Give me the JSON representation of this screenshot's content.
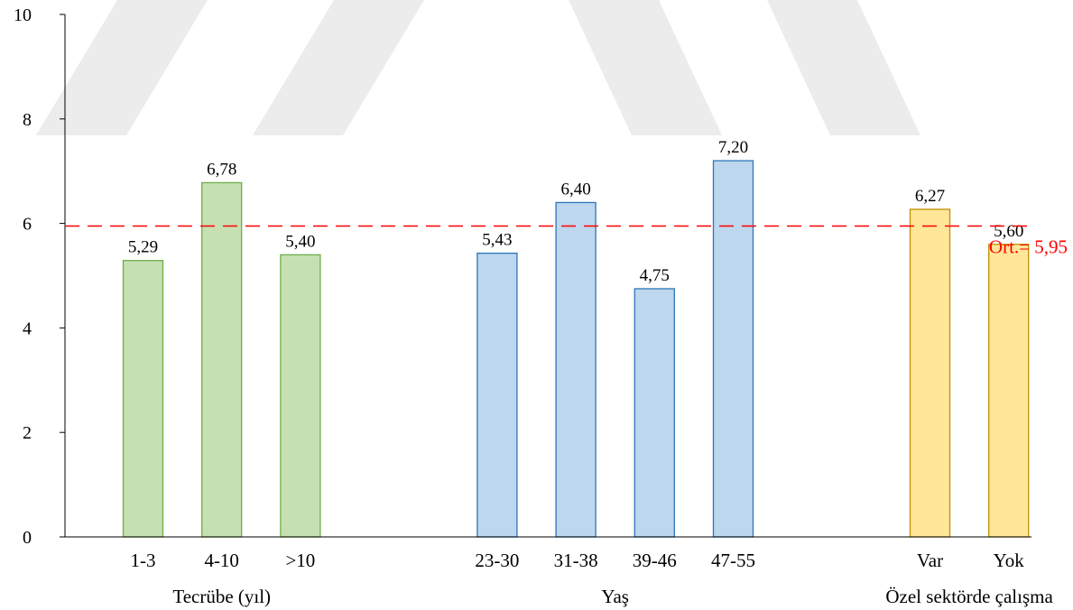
{
  "chart_data": {
    "type": "bar",
    "ylim": [
      0,
      10
    ],
    "yticks": [
      "0",
      "2",
      "4",
      "6",
      "8",
      "10"
    ],
    "grid": false,
    "groups": [
      {
        "name": "Tecrübe (yıl)",
        "color": "#c6e0b4",
        "stroke": "#70ad47",
        "categories": [
          "1-3",
          "4-10",
          ">10"
        ],
        "values": [
          5.29,
          6.78,
          5.4
        ],
        "labels": [
          "5,29",
          "6,78",
          "5,40"
        ]
      },
      {
        "name": "Yaş",
        "color": "#bdd7ee",
        "stroke": "#2e75b6",
        "categories": [
          "23-30",
          "31-38",
          "39-46",
          "47-55"
        ],
        "values": [
          5.43,
          6.4,
          4.75,
          7.2
        ],
        "labels": [
          "5,43",
          "6,40",
          "4,75",
          "7,20"
        ]
      },
      {
        "name": "Özel sektörde çalışma",
        "color": "#ffe699",
        "stroke": "#bf9000",
        "categories": [
          "Var",
          "Yok"
        ],
        "values": [
          6.27,
          5.6
        ],
        "labels": [
          "6,27",
          "5,60"
        ]
      }
    ],
    "reference_line": {
      "value": 5.95,
      "label": "Ort.= 5,95",
      "color": "#ff0000",
      "style": "dashed"
    }
  }
}
